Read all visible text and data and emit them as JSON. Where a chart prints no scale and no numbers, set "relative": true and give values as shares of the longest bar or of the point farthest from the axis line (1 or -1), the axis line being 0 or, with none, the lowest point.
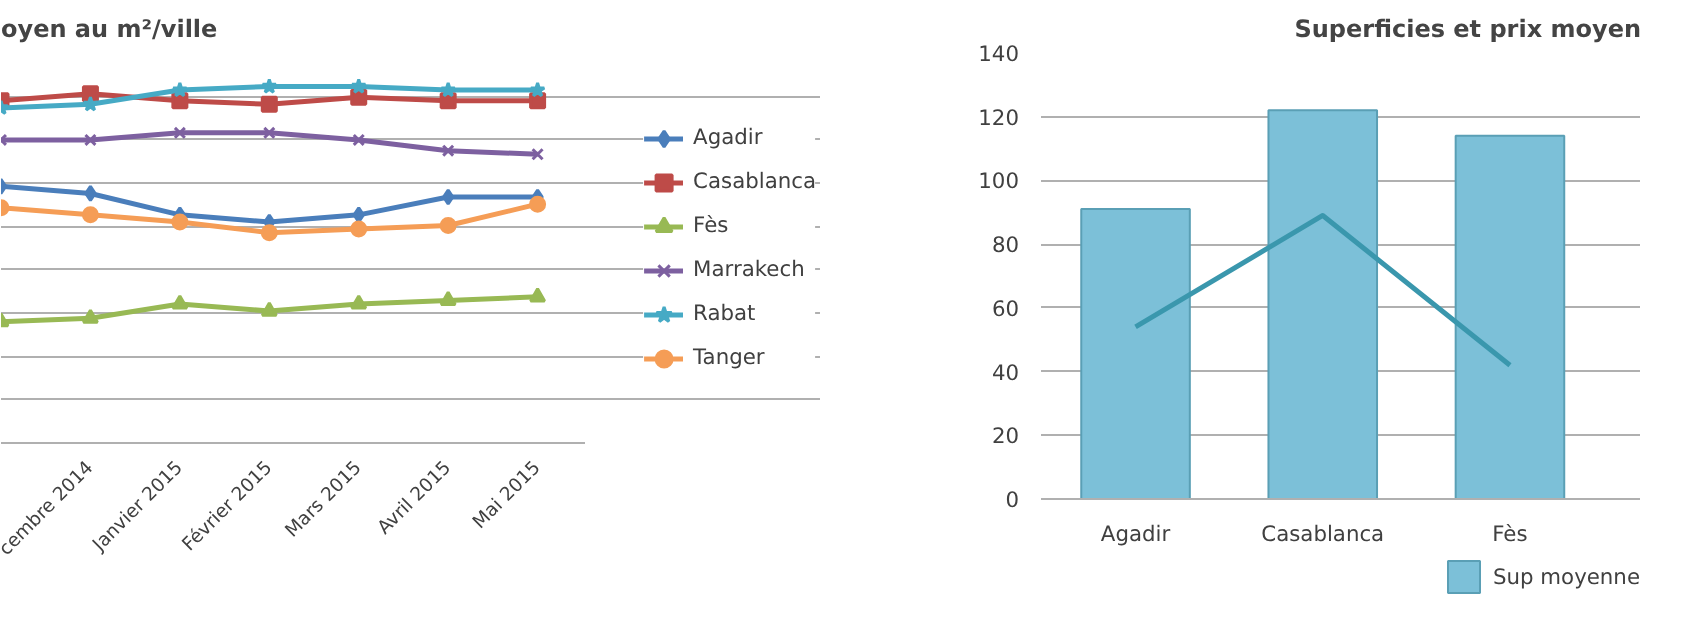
{
  "chart_data": [
    {
      "type": "line",
      "title": "oyen au m²/ville",
      "relative": true,
      "grid": "y",
      "legend": "right",
      "line_style": "solid",
      "categories": [
        null,
        "cembre 2014",
        "Janvier 2015",
        "Février 2015",
        "Mars 2015",
        "Avril 2015",
        "Mai 2015"
      ],
      "series": [
        {
          "name": "Agadir",
          "color": "#4a7ebb",
          "marker": "diamond",
          "values": [
            0.72,
            0.7,
            0.64,
            0.62,
            0.64,
            0.69,
            0.69
          ]
        },
        {
          "name": "Casablanca",
          "color": "#be4b48",
          "marker": "square",
          "values": [
            0.96,
            0.98,
            0.96,
            0.95,
            0.97,
            0.96,
            0.96
          ]
        },
        {
          "name": "Fès",
          "color": "#98b954",
          "marker": "triangle",
          "values": [
            0.34,
            0.35,
            0.39,
            0.37,
            0.39,
            0.4,
            0.41
          ]
        },
        {
          "name": "Marrakech",
          "color": "#7d60a0",
          "marker": "cross",
          "values": [
            0.85,
            0.85,
            0.87,
            0.87,
            0.85,
            0.82,
            0.81
          ]
        },
        {
          "name": "Rabat",
          "color": "#46aac5",
          "marker": "star",
          "values": [
            0.94,
            0.95,
            0.99,
            1.0,
            1.0,
            0.99,
            0.99
          ]
        },
        {
          "name": "Tanger",
          "color": "#f59d56",
          "marker": "circle",
          "values": [
            0.66,
            0.64,
            0.62,
            0.59,
            0.6,
            0.61,
            0.67
          ]
        }
      ]
    },
    {
      "type": "bar",
      "title": "Superficies et prix moyen",
      "grid": "y",
      "legend": "bottom",
      "categories": [
        "Agadir",
        "Casablanca",
        "Fès"
      ],
      "ylim": [
        0,
        140
      ],
      "yticks": [
        0,
        20,
        40,
        60,
        80,
        100,
        120,
        140
      ],
      "series": [
        {
          "name": "Sup moyenne",
          "color": "#7cc0d8",
          "values": [
            91,
            122,
            114
          ]
        },
        {
          "type": "line",
          "color": "#3a97ad",
          "values": [
            54,
            89,
            42
          ]
        }
      ]
    }
  ]
}
